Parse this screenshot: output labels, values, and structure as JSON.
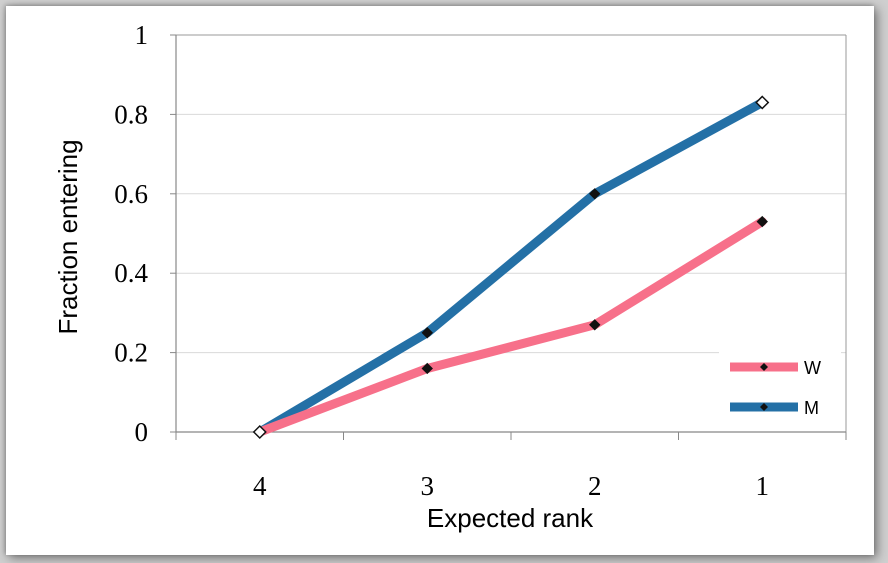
{
  "chart_data": {
    "type": "line",
    "categories": [
      "4",
      "3",
      "2",
      "1"
    ],
    "xlabel": "Expected rank",
    "ylabel": "Fraction entering",
    "ylim": [
      0,
      1
    ],
    "yticks": [
      "0",
      "0.2",
      "0.4",
      "0.6",
      "0.8",
      "1"
    ],
    "grid": true,
    "legend_position": "bottom-right",
    "series": [
      {
        "name": "W",
        "color": "#f7708a",
        "values": [
          0.0,
          0.16,
          0.27,
          0.53
        ]
      },
      {
        "name": "M",
        "color": "#2470a6",
        "values": [
          0.0,
          0.25,
          0.6,
          0.83
        ]
      }
    ]
  }
}
